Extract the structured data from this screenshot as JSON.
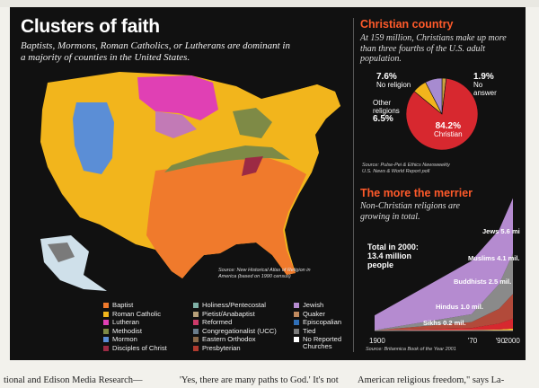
{
  "page_header": "",
  "map_panel": {
    "title": "Clusters of faith",
    "subtitle": "Baptists, Mormons, Roman Catholics, or Lutherans are dominant in a majority of counties in the United States.",
    "source": "Source: New Historical Atlas of Religion in America (based on 1990 census)",
    "legend": [
      {
        "label": "Baptist",
        "color": "#f07a2c"
      },
      {
        "label": "Roman Catholic",
        "color": "#f2b51c"
      },
      {
        "label": "Lutheran",
        "color": "#e040b4"
      },
      {
        "label": "Methodist",
        "color": "#7e8a46"
      },
      {
        "label": "Mormon",
        "color": "#5b8ed6"
      },
      {
        "label": "Disciples of Christ",
        "color": "#9c2a44"
      },
      {
        "label": "Holiness/Pentecostal",
        "color": "#7fb0a6"
      },
      {
        "label": "Pietist/Anabaptist",
        "color": "#b7a07a"
      },
      {
        "label": "Reformed",
        "color": "#cc3a6a"
      },
      {
        "label": "Congregationalist (UCC)",
        "color": "#6a7d8c"
      },
      {
        "label": "Eastern Orthodox",
        "color": "#8a6a4a"
      },
      {
        "label": "Presbyterian",
        "color": "#b03a2e"
      },
      {
        "label": "Jewish",
        "color": "#b58bd0"
      },
      {
        "label": "Quaker",
        "color": "#c08a60"
      },
      {
        "label": "Episcopalian",
        "color": "#2f6fb8"
      },
      {
        "label": "Tied",
        "color": "#7a7a7a"
      },
      {
        "label": "No Reported Churches",
        "color": "#ffffff"
      }
    ]
  },
  "christian_country": {
    "title": "Christian country",
    "text": "At 159 million, Christians make up more than three fourths of the U.S. adult population.",
    "source": "Source: Pulse-Pei & Ethics Newsweekly U.S. News & World Report poll",
    "chart_data": {
      "type": "pie",
      "slices": [
        {
          "label": "Christian",
          "value": 84.2,
          "color": "#d7282f"
        },
        {
          "label": "Other religions",
          "value": 6.5,
          "color": "#f2b51c"
        },
        {
          "label": "No religion",
          "value": 7.6,
          "color": "#a78bd0"
        },
        {
          "label": "No answer",
          "value": 1.9,
          "color": "#c9a040"
        }
      ],
      "labels": {
        "christian_pct": "84.2%",
        "christian": "Christian",
        "other_pct": "6.5%",
        "other": "Other religions",
        "none_pct": "7.6%",
        "none": "No religion",
        "noanswer_pct": "1.9%",
        "noanswer": "No answer"
      }
    }
  },
  "more_merrier": {
    "title": "The more the merrier",
    "text": "Non-Christian religions are growing in total.",
    "total_line1": "Total in 2000:",
    "total_line2": "13.4 million",
    "total_line3": "people",
    "source": "Source: Britannica Book of the Year 2001",
    "chart_data": {
      "type": "area",
      "x": [
        1900,
        1970,
        1990,
        2000
      ],
      "x_tick_labels": [
        "1900",
        "'70",
        "'90",
        "2000"
      ],
      "series": [
        {
          "name": "Sikhs",
          "label": "Sikhs 0.2 mil.",
          "values": [
            0.0,
            0.05,
            0.1,
            0.2
          ],
          "color": "#f2b51c"
        },
        {
          "name": "Hindus",
          "label": "Hindus 1.0 mil.",
          "values": [
            0.0,
            0.2,
            0.6,
            1.0
          ],
          "color": "#d7282f"
        },
        {
          "name": "Buddhists",
          "label": "Buddhists 2.5 mil.",
          "values": [
            0.02,
            0.6,
            1.5,
            2.5
          ],
          "color": "#b24a3a"
        },
        {
          "name": "Muslims",
          "label": "Muslims 4.1 mil.",
          "values": [
            0.01,
            0.8,
            2.5,
            4.1
          ],
          "color": "#8a8a8a"
        },
        {
          "name": "Jews",
          "label": "Jews 5.6 mil.",
          "values": [
            1.5,
            5.4,
            5.5,
            5.6
          ],
          "color": "#b58bd0"
        }
      ]
    }
  },
  "article_text": [
    "tional and Edison Media Research—",
    "'Yes, there are many paths to God.' It's not",
    "American religious freedom,\" says La-"
  ]
}
